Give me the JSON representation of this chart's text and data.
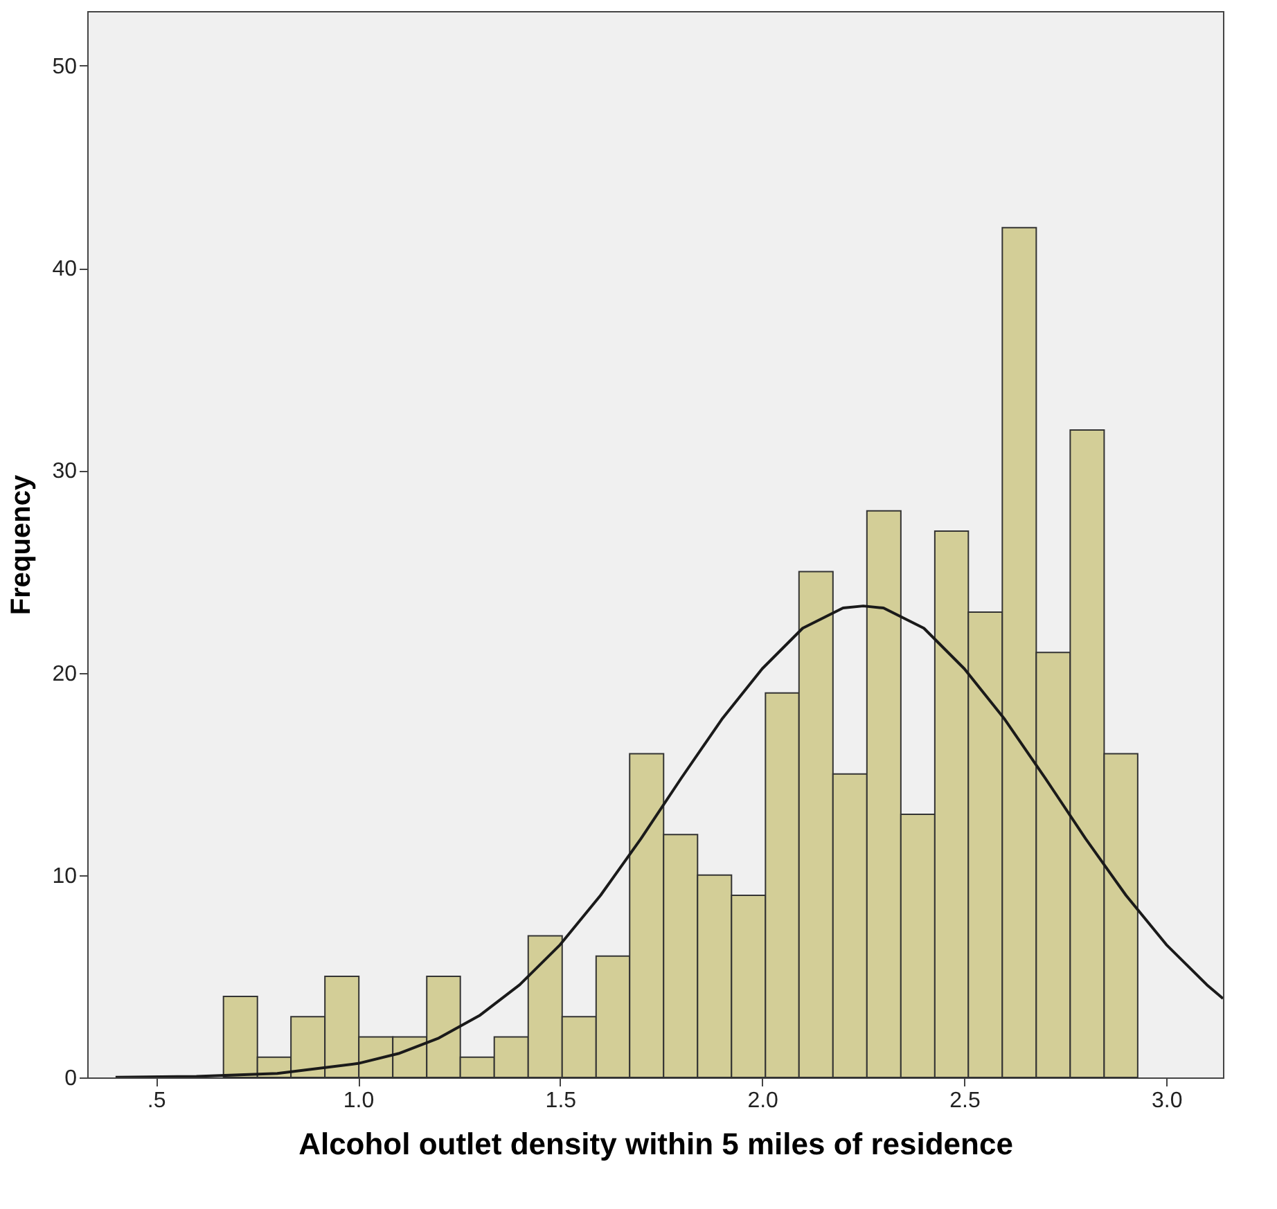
{
  "chart_data": {
    "type": "histogram",
    "xlabel": "Alcohol outlet density within 5 miles of residence",
    "ylabel": "Frequency",
    "color": "#d3ce97",
    "bins": [
      0.667,
      0.751,
      0.834,
      0.918,
      1.002,
      1.086,
      1.17,
      1.253,
      1.337,
      1.421,
      1.505,
      1.589,
      1.672,
      1.756,
      1.84,
      1.924,
      2.008,
      2.091,
      2.175,
      2.259,
      2.343,
      2.427,
      2.51,
      2.594,
      2.678,
      2.762,
      2.846,
      2.929
    ],
    "values": [
      4,
      1,
      3,
      5,
      2,
      2,
      5,
      1,
      2,
      7,
      3,
      6,
      16,
      12,
      10,
      9,
      19,
      25,
      15,
      28,
      13,
      27,
      23,
      42,
      21,
      32,
      16
    ],
    "series": [
      {
        "type": "line",
        "color": "#1a1a1a",
        "x": [
          0.4,
          0.6,
          0.8,
          1.0,
          1.1,
          1.2,
          1.3,
          1.4,
          1.5,
          1.6,
          1.7,
          1.8,
          1.9,
          2.0,
          2.1,
          2.2,
          2.25,
          2.3,
          2.4,
          2.5,
          2.6,
          2.7,
          2.8,
          2.9,
          3.0,
          3.1,
          3.14
        ],
        "values": [
          0.01,
          0.05,
          0.2,
          0.69,
          1.18,
          1.95,
          3.05,
          4.58,
          6.56,
          9.0,
          11.8,
          14.8,
          17.7,
          20.2,
          22.2,
          23.2,
          23.3,
          23.2,
          22.2,
          20.2,
          17.7,
          14.8,
          11.8,
          9.0,
          6.56,
          4.58,
          3.9
        ]
      }
    ],
    "xlim": [
      0.33,
      3.14
    ],
    "xticks": [
      {
        "value": 0.5,
        "label": ".5"
      },
      {
        "value": 1.0,
        "label": "1.0"
      },
      {
        "value": 1.5,
        "label": "1.5"
      },
      {
        "value": 2.0,
        "label": "2.0"
      },
      {
        "value": 2.5,
        "label": "2.5"
      },
      {
        "value": 3.0,
        "label": "3.0"
      }
    ],
    "ylim": [
      0,
      52.7
    ],
    "yticks": [
      0,
      10,
      20,
      30,
      40,
      50
    ],
    "grid": false
  }
}
